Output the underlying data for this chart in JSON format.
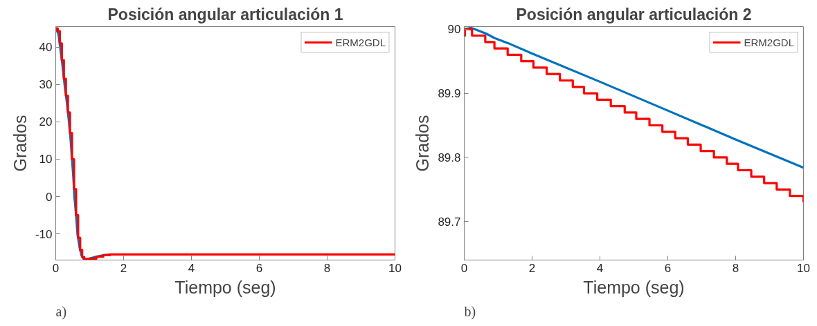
{
  "chart_data": [
    {
      "type": "line",
      "title": "Posición angular articulación 1",
      "xlabel": "Tiempo (seg)",
      "ylabel": "Grados",
      "xlim": [
        0,
        10
      ],
      "xticks": [
        0,
        2,
        4,
        6,
        8,
        10
      ],
      "ylim": [
        -17,
        45.5
      ],
      "yticks": [
        -10,
        0,
        10,
        20,
        30,
        40
      ],
      "legend": "top right",
      "annotations": [
        "a)"
      ],
      "series": [
        {
          "color": "#0072bd",
          "x": [
            0,
            0.08,
            0.13,
            0.2,
            0.26,
            0.33,
            0.39,
            0.44,
            0.48,
            0.52,
            0.55,
            0.6,
            0.64,
            0.7,
            0.76,
            0.83,
            1.0,
            1.2,
            1.4,
            1.6
          ],
          "values": [
            45,
            43.5,
            40,
            35,
            30,
            25,
            20,
            15,
            10,
            5,
            0,
            -5,
            -10,
            -13.5,
            -15.8,
            -16.8,
            -16.6,
            -16.1,
            -15.7,
            -15.5
          ]
        },
        {
          "type": "step",
          "name": "ERM2GDL",
          "color": "#ff0000",
          "x": [
            0,
            0.06,
            0.12,
            0.18,
            0.24,
            0.3,
            0.36,
            0.42,
            0.48,
            0.54,
            0.6,
            0.66,
            0.72,
            0.78,
            0.84,
            1.0,
            1.2,
            1.4,
            1.6,
            2,
            10
          ],
          "values": [
            45,
            44.3,
            41,
            36.5,
            31.5,
            27,
            22.5,
            17,
            10,
            2,
            -5,
            -11,
            -14.3,
            -16.2,
            -16.8,
            -16.6,
            -16.1,
            -15.7,
            -15.5,
            -15.5,
            -15.4
          ]
        }
      ]
    },
    {
      "type": "line",
      "title": "Posición angular articulación 2",
      "xlabel": "Tiempo (seg)",
      "ylabel": "Grados",
      "xlim": [
        0,
        10
      ],
      "xticks": [
        0,
        2,
        4,
        6,
        8,
        10
      ],
      "ylim": [
        89.64,
        90.004
      ],
      "yticks": [
        89.7,
        89.8,
        89.9,
        90
      ],
      "legend": "top right",
      "annotations": [
        "b)"
      ],
      "series": [
        {
          "color": "#0072bd",
          "x": [
            0,
            0.2,
            0.4,
            0.65,
            0.9,
            1.3,
            2,
            4,
            6,
            8,
            10
          ],
          "values": [
            90.0,
            90.002,
            89.998,
            89.993,
            89.986,
            89.978,
            89.962,
            89.918,
            89.873,
            89.828,
            89.784
          ]
        },
        {
          "type": "step",
          "name": "ERM2GDL",
          "color": "#ff0000",
          "x": [
            0,
            0.02,
            0.23,
            0.62,
            0.89,
            1.28,
            1.68,
            2.04,
            2.43,
            2.82,
            3.2,
            3.53,
            3.92,
            4.32,
            4.73,
            5.07,
            5.46,
            5.84,
            6.22,
            6.59,
            6.97,
            7.36,
            7.74,
            8.07,
            8.46,
            8.84,
            9.21,
            9.6,
            10
          ],
          "values": [
            89.99,
            90.0,
            89.99,
            89.98,
            89.97,
            89.96,
            89.95,
            89.94,
            89.93,
            89.92,
            89.91,
            89.9,
            89.89,
            89.88,
            89.87,
            89.86,
            89.85,
            89.84,
            89.83,
            89.82,
            89.81,
            89.8,
            89.79,
            89.78,
            89.77,
            89.76,
            89.75,
            89.74,
            89.73
          ]
        }
      ]
    }
  ]
}
